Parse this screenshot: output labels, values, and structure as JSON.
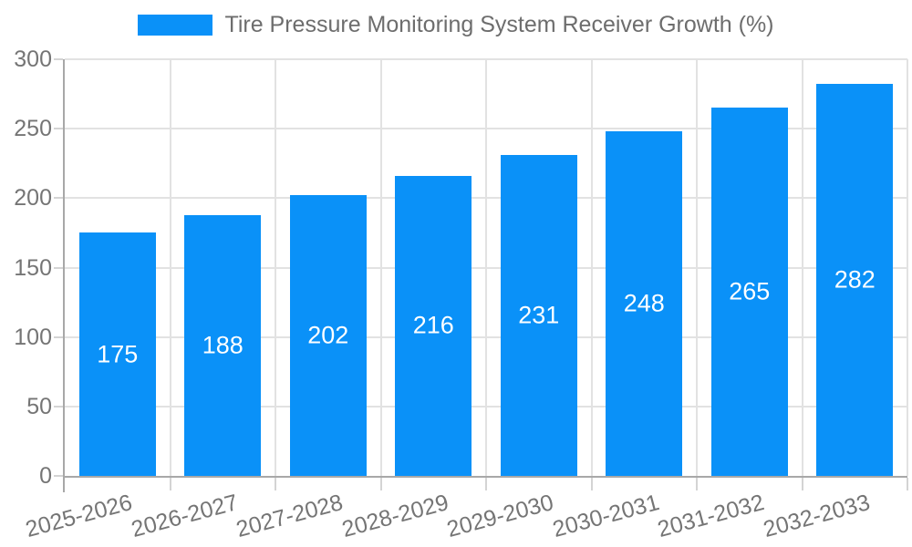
{
  "legend": {
    "label": "Tire Pressure Monitoring System Receiver Growth (%)"
  },
  "chart_data": {
    "type": "bar",
    "title": "Tire Pressure Monitoring System Receiver Growth (%)",
    "categories": [
      "2025-2026",
      "2026-2027",
      "2027-2028",
      "2028-2029",
      "2029-2030",
      "2030-2031",
      "2031-2032",
      "2032-2033"
    ],
    "values": [
      175,
      188,
      202,
      216,
      231,
      248,
      265,
      282
    ],
    "xlabel": "",
    "ylabel": "",
    "ylim": [
      0,
      300
    ],
    "yticks": [
      0,
      50,
      100,
      150,
      200,
      250,
      300
    ],
    "grid": true,
    "legend_position": "top",
    "value_labels": "inside-center",
    "colors": {
      "bar": "#0a91f8",
      "value_label": "#ffffff",
      "axis_text": "#757575",
      "legend_text": "#6d6d6d",
      "grid_line": "#e2e2e2",
      "axis_line": "#a8a8a8",
      "tick_mark": "#d4d4d4"
    }
  }
}
